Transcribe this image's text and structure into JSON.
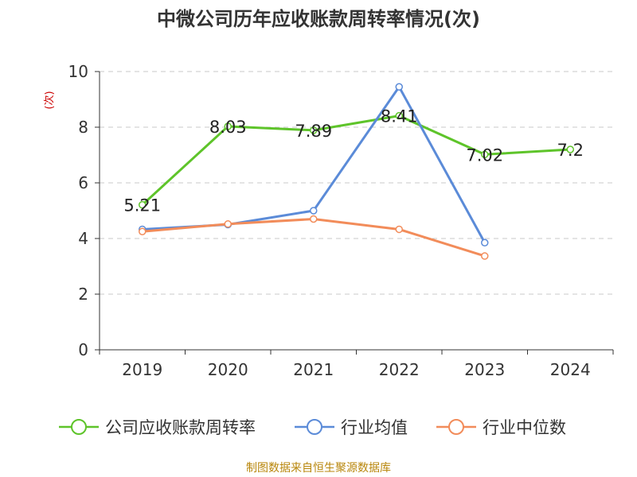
{
  "colors": {
    "company": "#5ec42a",
    "industry_avg": "#5b8bd8",
    "industry_median": "#f28c5a",
    "axis": "#333333",
    "grid": "#c8c8c8",
    "ylabel": "#cc0000",
    "source": "#b8860b"
  },
  "source_note": "制图数据来自恒生聚源数据库",
  "chart_data": {
    "type": "line",
    "title": "中微公司历年应收账款周转率情况(次)",
    "xlabel": "",
    "ylabel": "(次)",
    "categories": [
      "2019",
      "2020",
      "2021",
      "2022",
      "2023",
      "2024"
    ],
    "ylim": [
      0,
      10
    ],
    "yticks": [
      0,
      2,
      4,
      6,
      8,
      10
    ],
    "grid": true,
    "legend_position": "bottom",
    "series": [
      {
        "name": "公司应收账款周转率",
        "color_key": "company",
        "values": [
          5.21,
          8.03,
          7.89,
          8.41,
          7.02,
          7.2
        ],
        "labels": [
          "5.21",
          "8.03",
          "7.89",
          "8.41",
          "7.02",
          "7.2"
        ]
      },
      {
        "name": "行业均值",
        "color_key": "industry_avg",
        "values": [
          4.33,
          4.5,
          5.0,
          9.45,
          3.85,
          null
        ]
      },
      {
        "name": "行业中位数",
        "color_key": "industry_median",
        "values": [
          4.25,
          4.52,
          4.7,
          4.33,
          3.37,
          null
        ]
      }
    ]
  }
}
